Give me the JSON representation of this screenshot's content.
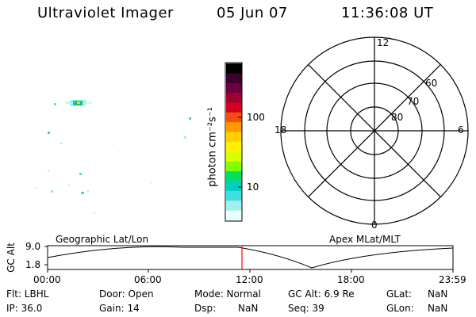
{
  "header": {
    "instrument": "Ultraviolet Imager",
    "date": "05 Jun 07",
    "time": "11:36:08 UT"
  },
  "colorbar": {
    "label": "photon cm⁻²s⁻¹",
    "ticks": [
      "100",
      "10"
    ],
    "colors": [
      "#000000",
      "#3a0030",
      "#6a0040",
      "#a00030",
      "#d40020",
      "#f05010",
      "#ff9900",
      "#ffd000",
      "#fff000",
      "#d8ff00",
      "#80ff00",
      "#00e060",
      "#00d0c0",
      "#40e0e0",
      "#a0f0f0",
      "#e8ffff"
    ]
  },
  "polar": {
    "mlt_labels": {
      "top": "12",
      "left": "18",
      "right": "6",
      "bottom": "0"
    },
    "lat_labels": [
      "60",
      "70",
      "80"
    ]
  },
  "panel": {
    "left_title": "Geographic Lat/Lon",
    "right_title": "Apex MLat/MLT",
    "y_label": "GC Alt",
    "y_ticks": [
      "9.0",
      "1.8"
    ],
    "x_ticks": [
      "00:00",
      "06:00",
      "12:00",
      "18:00",
      "23:59"
    ],
    "marker_color": "#ff0000"
  },
  "footer": {
    "flt": "Flt: LBHL",
    "ip": "IP: 36.0",
    "door": "Door: Open",
    "gain": "Gain: 14",
    "mode": "Mode: Normal",
    "dsp_label": "Dsp:",
    "dsp_value": "NaN",
    "gc_alt": "GC Alt: 6.9 Re",
    "seq": "Seq: 39",
    "glat_label": "GLat:",
    "glat_value": "NaN",
    "glon_label": "GLon:",
    "glon_value": "NaN"
  }
}
